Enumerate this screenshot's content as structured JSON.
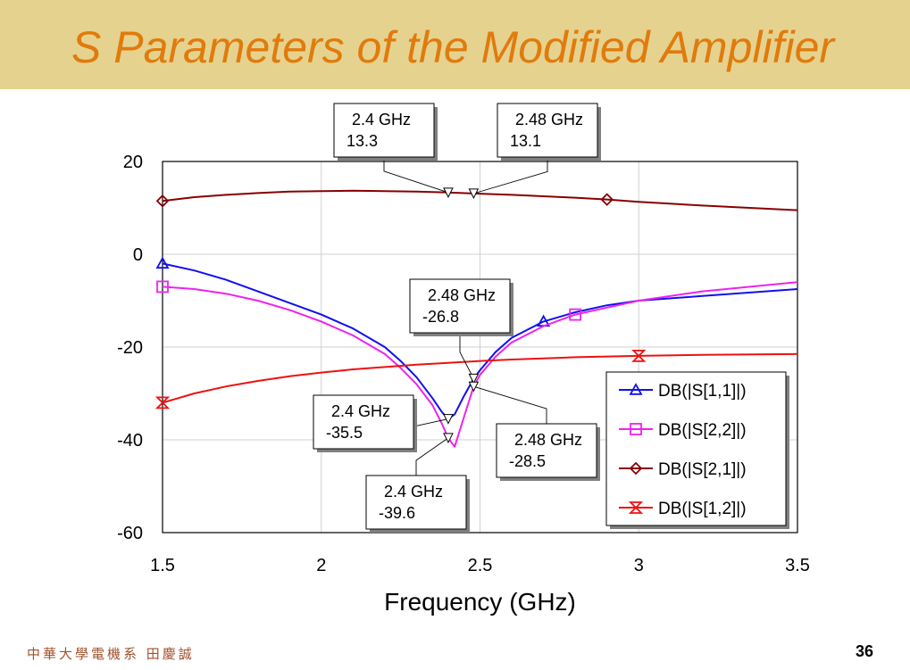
{
  "slide": {
    "title": "S Parameters of the Modified Amplifier",
    "footer_left": "中華大學電機系 田慶誠",
    "page_number": "36"
  },
  "colors": {
    "title_bg": "#e6d28f",
    "title_text": "#e07b0c",
    "s11": "#1010ee",
    "s22": "#ee22ee",
    "s21": "#880000",
    "s12": "#ee1111"
  },
  "chart_data": {
    "type": "line",
    "xlabel": "Frequency (GHz)",
    "ylabel": "",
    "xlim": [
      1.5,
      3.5
    ],
    "ylim": [
      -60,
      20
    ],
    "x_ticks": [
      "1.5",
      "2",
      "2.5",
      "3",
      "3.5"
    ],
    "y_ticks": [
      "20",
      "0",
      "-20",
      "-40",
      "-60"
    ],
    "x_tick_values": [
      1.5,
      2,
      2.5,
      3,
      3.5
    ],
    "y_tick_values": [
      20,
      0,
      -20,
      -40,
      -60
    ],
    "grid": true,
    "legend_position": "bottom-right",
    "series": [
      {
        "key": "s11",
        "name": "DB(|S[1,1]|)",
        "marker": "triangle",
        "marker_x": [
          1.5,
          2.7
        ],
        "x": [
          1.5,
          1.6,
          1.7,
          1.8,
          1.9,
          2.0,
          2.1,
          2.2,
          2.25,
          2.3,
          2.35,
          2.38,
          2.4,
          2.42,
          2.45,
          2.48,
          2.5,
          2.55,
          2.6,
          2.7,
          2.8,
          2.9,
          3.0,
          3.2,
          3.5
        ],
        "y": [
          -2.0,
          -3.5,
          -5.5,
          -8.0,
          -10.5,
          -13.0,
          -16.0,
          -20.0,
          -23.0,
          -26.5,
          -31.0,
          -34.0,
          -35.5,
          -34.5,
          -30.5,
          -26.8,
          -25.0,
          -21.0,
          -18.0,
          -14.5,
          -12.5,
          -11.0,
          -10.0,
          -9.0,
          -7.5
        ]
      },
      {
        "key": "s22",
        "name": "DB(|S[2,2]|)",
        "marker": "square",
        "marker_x": [
          1.5,
          2.8
        ],
        "x": [
          1.5,
          1.6,
          1.7,
          1.8,
          1.9,
          2.0,
          2.1,
          2.2,
          2.25,
          2.3,
          2.35,
          2.38,
          2.4,
          2.42,
          2.45,
          2.48,
          2.5,
          2.55,
          2.6,
          2.7,
          2.8,
          2.9,
          3.0,
          3.2,
          3.5
        ],
        "y": [
          -7.0,
          -7.5,
          -8.5,
          -10.0,
          -12.0,
          -14.5,
          -17.5,
          -21.5,
          -24.5,
          -28.0,
          -32.5,
          -36.5,
          -39.6,
          -41.5,
          -35.0,
          -28.5,
          -26.0,
          -22.0,
          -19.0,
          -15.5,
          -13.0,
          -11.5,
          -10.0,
          -8.0,
          -6.0
        ]
      },
      {
        "key": "s21",
        "name": "DB(|S[2,1]|)",
        "marker": "diamond",
        "marker_x": [
          1.5,
          2.9
        ],
        "x": [
          1.5,
          1.6,
          1.7,
          1.8,
          1.9,
          2.0,
          2.1,
          2.2,
          2.3,
          2.4,
          2.48,
          2.6,
          2.8,
          2.9,
          3.0,
          3.2,
          3.5
        ],
        "y": [
          11.5,
          12.3,
          12.8,
          13.2,
          13.5,
          13.6,
          13.7,
          13.6,
          13.5,
          13.3,
          13.1,
          12.8,
          12.2,
          11.8,
          11.3,
          10.5,
          9.5
        ]
      },
      {
        "key": "s12",
        "name": "DB(|S[1,2]|)",
        "marker": "bowtie",
        "marker_x": [
          1.5,
          3.0
        ],
        "x": [
          1.5,
          1.6,
          1.7,
          1.8,
          1.9,
          2.0,
          2.1,
          2.2,
          2.3,
          2.4,
          2.5,
          2.6,
          2.8,
          3.0,
          3.2,
          3.5
        ],
        "y": [
          -32.0,
          -30.0,
          -28.5,
          -27.3,
          -26.3,
          -25.5,
          -24.8,
          -24.3,
          -23.8,
          -23.4,
          -23.0,
          -22.7,
          -22.2,
          -21.9,
          -21.7,
          -21.5
        ]
      }
    ],
    "annotations": [
      {
        "freq": "2.4 GHz",
        "value": "13.3",
        "x": 2.4,
        "y": 13.3,
        "series": "s21"
      },
      {
        "freq": "2.48 GHz",
        "value": "13.1",
        "x": 2.48,
        "y": 13.1,
        "series": "s21"
      },
      {
        "freq": "2.48 GHz",
        "value": "-26.8",
        "x": 2.48,
        "y": -26.8,
        "series": "s11"
      },
      {
        "freq": "2.4 GHz",
        "value": "-35.5",
        "x": 2.4,
        "y": -35.5,
        "series": "s11"
      },
      {
        "freq": "2.48 GHz",
        "value": "-28.5",
        "x": 2.48,
        "y": -28.5,
        "series": "s22"
      },
      {
        "freq": "2.4 GHz",
        "value": "-39.6",
        "x": 2.4,
        "y": -39.6,
        "series": "s22"
      }
    ]
  }
}
